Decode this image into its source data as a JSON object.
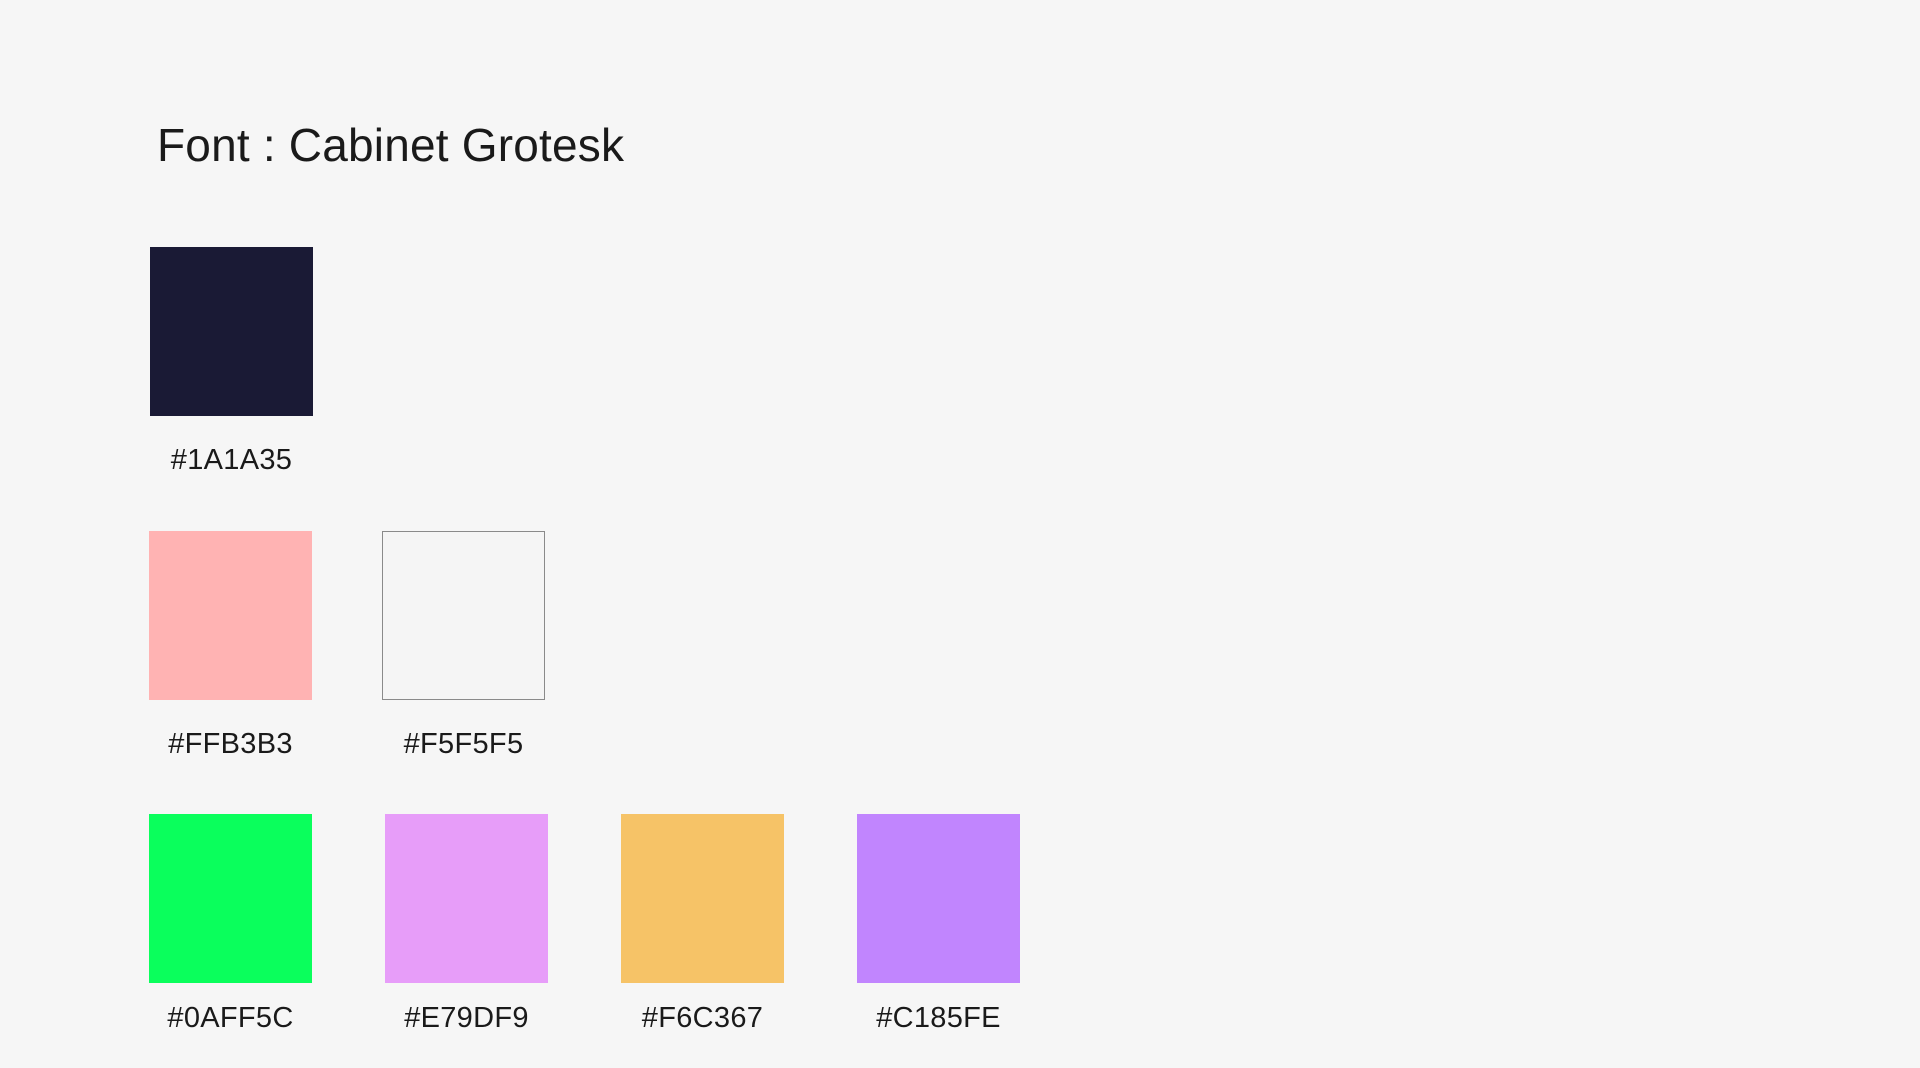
{
  "title": "Font : Cabinet Grotesk",
  "rows": [
    {
      "swatches": [
        {
          "hex": "#1A1A35",
          "color": "#1A1A35",
          "outlined": false
        }
      ]
    },
    {
      "swatches": [
        {
          "hex": "#FFB3B3",
          "color": "#FFB3B3",
          "outlined": false
        },
        {
          "hex": "#F5F5F5",
          "color": "#F5F5F5",
          "outlined": true
        }
      ]
    },
    {
      "swatches": [
        {
          "hex": "#0AFF5C",
          "color": "#0AFF5C",
          "outlined": false
        },
        {
          "hex": "#E79DF9",
          "color": "#E79DF9",
          "outlined": false
        },
        {
          "hex": "#F6C367",
          "color": "#F6C367",
          "outlined": false
        },
        {
          "hex": "#C185FE",
          "color": "#C185FE",
          "outlined": false
        }
      ]
    }
  ]
}
